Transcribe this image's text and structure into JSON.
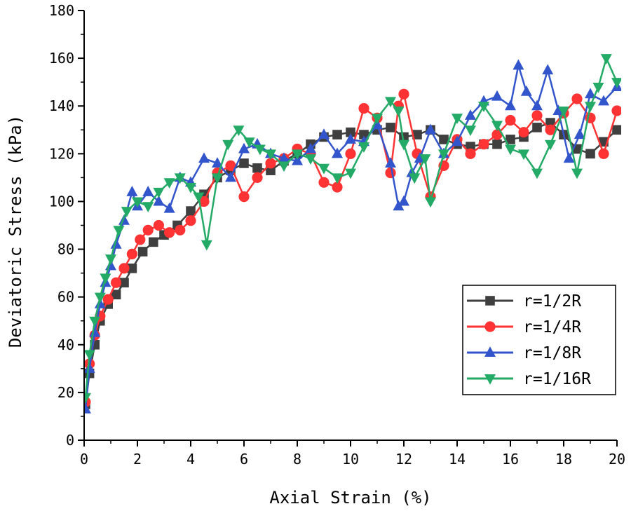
{
  "chart_data": {
    "type": "scatter",
    "title": "",
    "xlabel": "Axial Strain (%)",
    "ylabel": "Deviatoric Stress (kPa)",
    "xlim": [
      0,
      20
    ],
    "ylim": [
      0,
      180
    ],
    "xticks": [
      0,
      2,
      4,
      6,
      8,
      10,
      12,
      14,
      16,
      18,
      20
    ],
    "yticks": [
      0,
      20,
      40,
      60,
      80,
      100,
      120,
      140,
      160,
      180
    ],
    "grid": false,
    "legend_position": "bottom-right",
    "series": [
      {
        "name": "r=1/2R",
        "color": "#3f3f3f",
        "marker": "square",
        "x": [
          0.05,
          0.2,
          0.4,
          0.6,
          0.9,
          1.2,
          1.5,
          1.8,
          2.2,
          2.6,
          3.0,
          3.5,
          4.0,
          4.5,
          5.0,
          5.5,
          6.0,
          6.5,
          7.0,
          7.5,
          8.0,
          8.5,
          9.0,
          9.5,
          10.0,
          10.5,
          11.0,
          11.5,
          12.0,
          12.5,
          13.0,
          13.5,
          14.0,
          14.5,
          15.0,
          15.5,
          16.0,
          16.5,
          17.0,
          17.5,
          18.0,
          18.5,
          19.0,
          19.5,
          20.0
        ],
        "values": [
          15,
          28,
          40,
          50,
          57,
          61,
          66,
          72,
          79,
          83,
          86,
          90,
          96,
          103,
          110,
          113,
          116,
          114,
          113,
          117,
          120,
          124,
          127,
          128,
          129,
          128,
          130,
          131,
          127,
          128,
          130,
          126,
          124,
          123,
          124,
          124,
          126,
          127,
          131,
          133,
          128,
          122,
          120,
          125,
          130
        ]
      },
      {
        "name": "r=1/4R",
        "color": "#ff3333",
        "marker": "circle",
        "x": [
          0.05,
          0.2,
          0.4,
          0.6,
          0.9,
          1.2,
          1.5,
          1.8,
          2.1,
          2.4,
          2.8,
          3.2,
          3.6,
          4.0,
          4.5,
          5.0,
          5.5,
          6.0,
          6.5,
          7.0,
          7.5,
          8.0,
          8.5,
          9.0,
          9.5,
          10.0,
          10.5,
          11.0,
          11.5,
          11.8,
          12.0,
          12.5,
          13.0,
          13.5,
          14.0,
          14.5,
          15.0,
          15.5,
          16.0,
          16.5,
          17.0,
          17.5,
          18.0,
          18.5,
          19.0,
          19.5,
          20.0
        ],
        "values": [
          16,
          32,
          44,
          52,
          59,
          66,
          72,
          78,
          84,
          88,
          90,
          87,
          88,
          92,
          100,
          112,
          115,
          102,
          110,
          116,
          118,
          122,
          120,
          108,
          106,
          120,
          139,
          135,
          112,
          140,
          145,
          120,
          102,
          115,
          126,
          120,
          124,
          128,
          134,
          129,
          136,
          130,
          137,
          143,
          135,
          120,
          138
        ]
      },
      {
        "name": "r=1/8R",
        "color": "#3355cc",
        "marker": "triangle-up",
        "x": [
          0.05,
          0.2,
          0.4,
          0.6,
          0.8,
          1.0,
          1.2,
          1.5,
          1.8,
          2.0,
          2.4,
          2.8,
          3.2,
          3.6,
          4.0,
          4.5,
          5.0,
          5.5,
          6.0,
          6.5,
          7.0,
          7.5,
          8.0,
          8.5,
          9.0,
          9.5,
          10.0,
          10.5,
          11.0,
          11.5,
          11.8,
          12.0,
          12.3,
          12.6,
          13.0,
          13.5,
          14.0,
          14.5,
          15.0,
          15.5,
          16.0,
          16.3,
          16.6,
          17.0,
          17.4,
          17.8,
          18.2,
          18.6,
          19.0,
          19.5,
          20.0
        ],
        "values": [
          13,
          30,
          45,
          57,
          66,
          73,
          82,
          92,
          104,
          98,
          104,
          100,
          97,
          110,
          108,
          118,
          116,
          110,
          122,
          124,
          120,
          118,
          117,
          122,
          128,
          120,
          126,
          125,
          132,
          116,
          98,
          100,
          112,
          118,
          130,
          120,
          125,
          136,
          142,
          144,
          140,
          157,
          146,
          140,
          155,
          138,
          118,
          128,
          145,
          142,
          148
        ]
      },
      {
        "name": "r=1/16R",
        "color": "#22aa66",
        "marker": "triangle-down",
        "x": [
          0.05,
          0.2,
          0.4,
          0.6,
          0.8,
          1.0,
          1.3,
          1.6,
          2.0,
          2.4,
          2.8,
          3.2,
          3.6,
          4.0,
          4.3,
          4.6,
          5.0,
          5.4,
          5.8,
          6.2,
          6.6,
          7.0,
          7.5,
          8.0,
          8.5,
          9.0,
          9.5,
          10.0,
          10.5,
          11.0,
          11.5,
          11.8,
          12.0,
          12.4,
          12.8,
          13.0,
          13.5,
          14.0,
          14.5,
          15.0,
          15.5,
          16.0,
          16.5,
          17.0,
          17.5,
          18.0,
          18.5,
          19.0,
          19.3,
          19.6,
          20.0
        ],
        "values": [
          18,
          36,
          50,
          60,
          68,
          76,
          88,
          96,
          100,
          98,
          104,
          108,
          110,
          106,
          102,
          82,
          110,
          124,
          130,
          125,
          122,
          120,
          115,
          120,
          118,
          114,
          110,
          112,
          123,
          135,
          142,
          138,
          124,
          110,
          118,
          100,
          120,
          135,
          130,
          140,
          132,
          122,
          120,
          112,
          124,
          138,
          112,
          140,
          148,
          160,
          150
        ]
      }
    ]
  }
}
